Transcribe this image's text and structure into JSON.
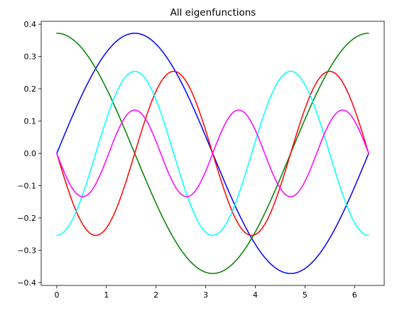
{
  "chart_data": {
    "type": "line",
    "title": "All eigenfunctions",
    "xlabel": "",
    "ylabel": "",
    "xlim": [
      -0.314,
      6.597
    ],
    "ylim": [
      -0.409,
      0.409
    ],
    "x_ticks": [
      0,
      1,
      2,
      3,
      4,
      5,
      6
    ],
    "x_tick_labels": [
      "0",
      "1",
      "2",
      "3",
      "4",
      "5",
      "6"
    ],
    "y_ticks": [
      -0.4,
      -0.3,
      -0.2,
      -0.1,
      0.0,
      0.1,
      0.2,
      0.3,
      0.4
    ],
    "y_tick_labels": [
      "−0.4",
      "−0.3",
      "−0.2",
      "−0.1",
      "0.0",
      "0.1",
      "0.2",
      "0.3",
      "0.4"
    ],
    "grid": false,
    "legend": "none",
    "x_range": [
      0,
      6.2832
    ],
    "series": [
      {
        "color": "#0000ff",
        "function": "0.372*sin(x)",
        "amplitude": 0.372,
        "kind": "sin",
        "frequency": 1
      },
      {
        "color": "#008000",
        "function": "0.372*cos(x)",
        "amplitude": 0.372,
        "kind": "cos",
        "frequency": 1
      },
      {
        "color": "#ff0000",
        "function": "-0.254*sin(2x)",
        "amplitude": -0.254,
        "kind": "sin",
        "frequency": 2
      },
      {
        "color": "#00ffff",
        "function": "-0.254*cos(2x)",
        "amplitude": -0.254,
        "kind": "cos",
        "frequency": 2
      },
      {
        "color": "#ff00ff",
        "function": "-0.134*sin(3x)",
        "amplitude": -0.134,
        "kind": "sin",
        "frequency": 3
      }
    ]
  }
}
